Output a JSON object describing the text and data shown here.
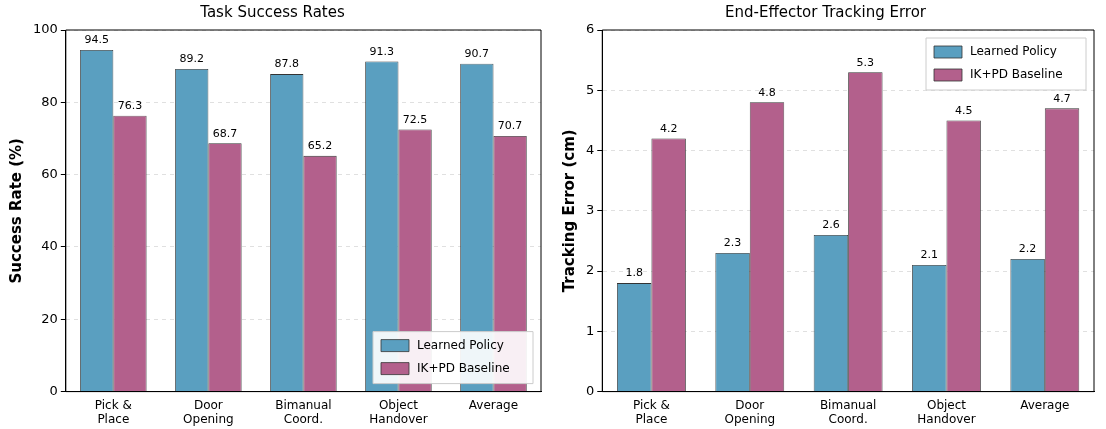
{
  "chart_data": [
    {
      "type": "bar",
      "title": "Task Success Rates",
      "ylabel": "Success Rate (%)",
      "categories": [
        "Pick &\nPlace",
        "Door\nOpening",
        "Bimanual\nCoord.",
        "Object\nHandover",
        "Average"
      ],
      "series": [
        {
          "name": "Learned Policy",
          "color": "#5a9fc0",
          "values": [
            94.5,
            89.2,
            87.8,
            91.3,
            90.7
          ]
        },
        {
          "name": "IK+PD Baseline",
          "color": "#b3608c",
          "values": [
            76.3,
            68.7,
            65.2,
            72.5,
            70.7
          ]
        }
      ],
      "ylim": [
        0,
        100
      ],
      "yticks": [
        0,
        20,
        40,
        60,
        80,
        100
      ],
      "grid": "y",
      "legend": "bottom right",
      "data_labels": true
    },
    {
      "type": "bar",
      "title": "End-Effector Tracking Error",
      "ylabel": "Tracking Error (cm)",
      "categories": [
        "Pick &\nPlace",
        "Door\nOpening",
        "Bimanual\nCoord.",
        "Object\nHandover",
        "Average"
      ],
      "series": [
        {
          "name": "Learned Policy",
          "color": "#5a9fc0",
          "values": [
            1.8,
            2.3,
            2.6,
            2.1,
            2.2
          ]
        },
        {
          "name": "IK+PD Baseline",
          "color": "#b3608c",
          "values": [
            4.2,
            4.8,
            5.3,
            4.5,
            4.7
          ]
        }
      ],
      "ylim": [
        0,
        6
      ],
      "yticks": [
        0,
        1,
        2,
        3,
        4,
        5,
        6
      ],
      "grid": "y",
      "legend": "top right",
      "data_labels": true
    }
  ]
}
